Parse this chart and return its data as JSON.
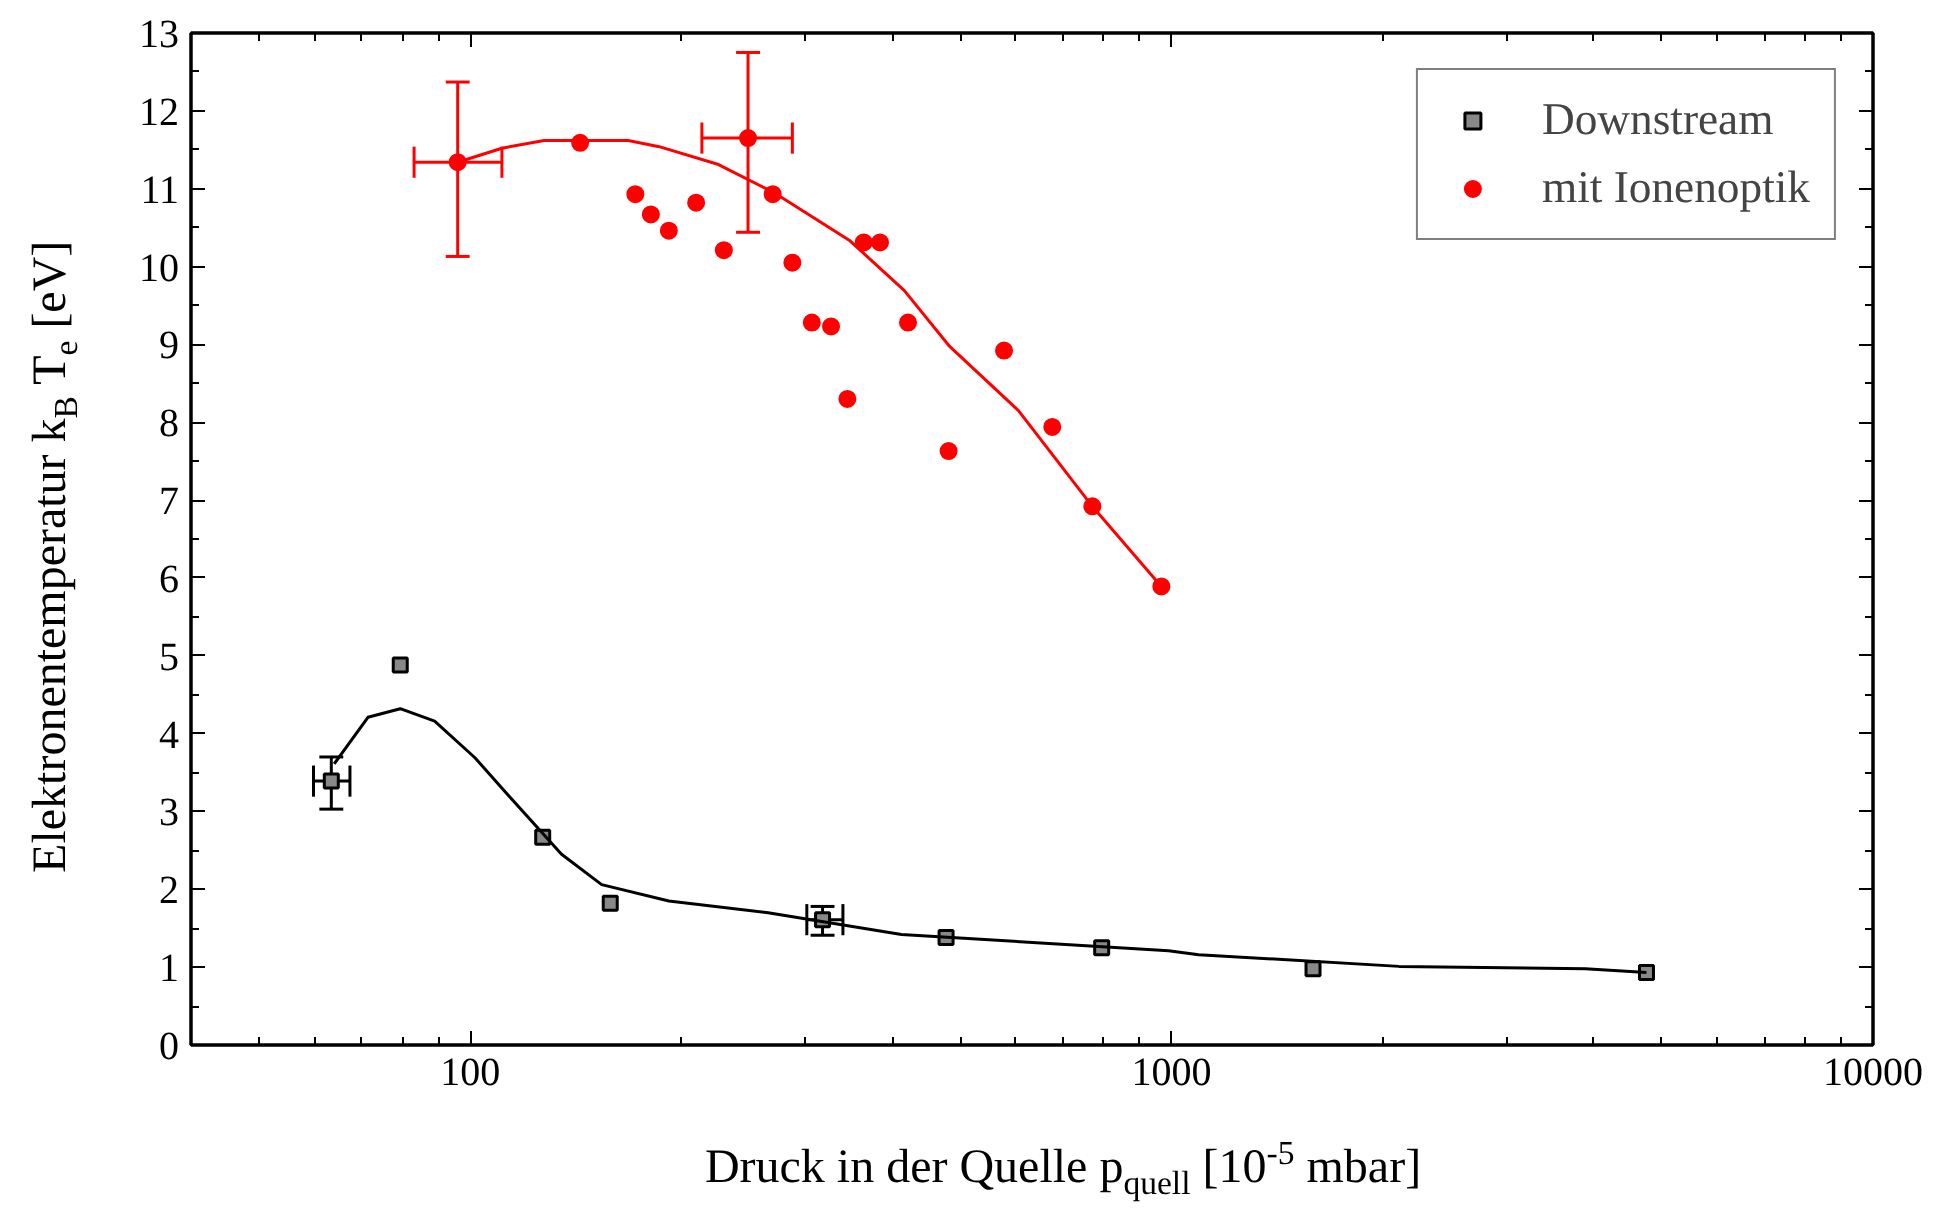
{
  "chart_data": {
    "type": "scatter",
    "xlabel": "Druck in der Quelle p$_{quell}$ [10$^{-5}$ mbar]",
    "ylabel": "Elektronentemperatur k$_{B}$ T$_{e}$ [eV]",
    "log": "x",
    "grid": false,
    "legend": "top right",
    "xlim": [
      40,
      10000
    ],
    "xticks": [
      100,
      1000,
      10000
    ],
    "ylim": [
      0,
      13
    ],
    "yticks": [
      0,
      1,
      2,
      3,
      4,
      5,
      6,
      7,
      8,
      9,
      10,
      11,
      12,
      13
    ],
    "series": [
      {
        "name": "Downstream",
        "marker": "square",
        "color": "#000000",
        "x": [
          63.4,
          79.5,
          126.9,
          158.4,
          318,
          477,
          795,
          1591,
          4754
        ],
        "values": [
          3.39,
          4.88,
          2.67,
          1.82,
          1.61,
          1.38,
          1.25,
          0.98,
          0.93
        ],
        "errors": [
          [
            3.03,
            3.7
          ],
          null,
          null,
          null,
          [
            1.41,
            1.78
          ],
          null,
          null,
          null,
          null
        ],
        "xerrors": [
          [
            59.8,
            67.4
          ],
          null,
          null,
          null,
          [
            302,
            340
          ],
          null,
          null,
          null,
          null
        ]
      },
      {
        "name": "mit Ionenoptik",
        "marker": "circle",
        "color": "#ff0000",
        "x": [
          96,
          143.5,
          172,
          181,
          192,
          210,
          230,
          249,
          270,
          288,
          307,
          327,
          345,
          364,
          384,
          421,
          481,
          577,
          676,
          771,
          967
        ],
        "values": [
          11.34,
          11.59,
          10.93,
          10.67,
          10.46,
          10.82,
          10.21,
          11.65,
          10.93,
          10.05,
          9.28,
          9.23,
          8.3,
          10.31,
          10.31,
          9.28,
          7.63,
          8.92,
          7.94,
          6.92,
          5.89
        ],
        "errors": [
          [
            10.13,
            12.37
          ],
          null,
          null,
          null,
          null,
          null,
          null,
          [
            10.44,
            12.75
          ],
          null,
          null,
          null,
          null,
          null,
          null,
          null,
          null,
          null,
          null,
          null,
          null,
          null
        ],
        "xerrors": [
          [
            83.2,
            111
          ],
          null,
          null,
          null,
          null,
          null,
          null,
          [
            214,
            288
          ],
          null,
          null,
          null,
          null,
          null,
          null,
          null,
          null,
          null,
          null,
          null,
          null,
          null
        ]
      },
      {
        "type": "line",
        "color": "#000000",
        "x": [
          64,
          71.5,
          79.5,
          89,
          101.6,
          113,
          135,
          154,
          192,
          266,
          412,
          990,
          1093,
          2110,
          3889,
          4754
        ],
        "values": [
          3.61,
          4.21,
          4.32,
          4.16,
          3.69,
          3.22,
          2.45,
          2.06,
          1.85,
          1.7,
          1.42,
          1.21,
          1.16,
          1.01,
          0.98,
          0.93
        ]
      },
      {
        "type": "line",
        "color": "#ff0000",
        "x": [
          96,
          111,
          127.5,
          168,
          186,
          226,
          271,
          348,
          416,
          483,
          605,
          771,
          967
        ],
        "values": [
          11.34,
          11.52,
          11.62,
          11.62,
          11.54,
          11.31,
          10.95,
          10.33,
          9.69,
          8.97,
          8.15,
          6.92,
          5.89
        ]
      }
    ]
  }
}
